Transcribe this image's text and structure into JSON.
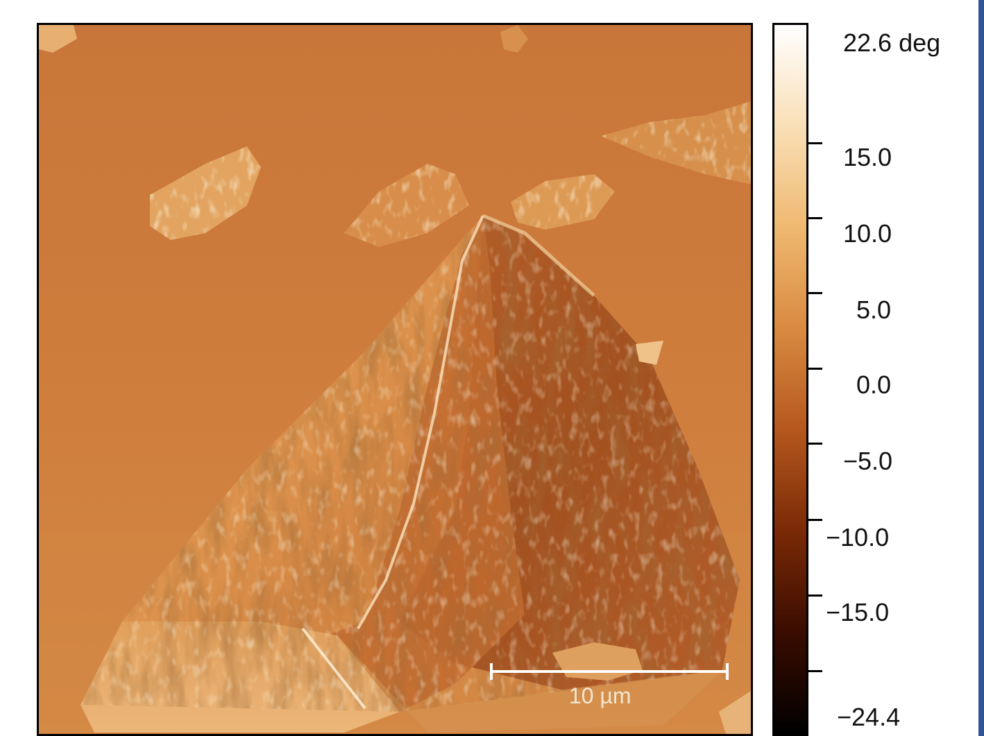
{
  "colorbar": {
    "unit": "deg",
    "max_label": "22.6 deg",
    "min_label": "−24.4",
    "tick_labels": [
      "15.0",
      "10.0",
      "5.0",
      "0.0",
      "−5.0",
      "−10.0",
      "−15.0"
    ],
    "range": [
      -24.4,
      22.6
    ],
    "colors": [
      "#000000",
      "#3a0c00",
      "#7a2a06",
      "#b5571e",
      "#d98a40",
      "#efb870",
      "#f9dfb6",
      "#ffffff"
    ]
  },
  "scale_bar": {
    "label": "10 µm",
    "color": "#ffffff"
  },
  "image": {
    "background_color": "#cd7a38",
    "frame_color": "#2f5597"
  }
}
